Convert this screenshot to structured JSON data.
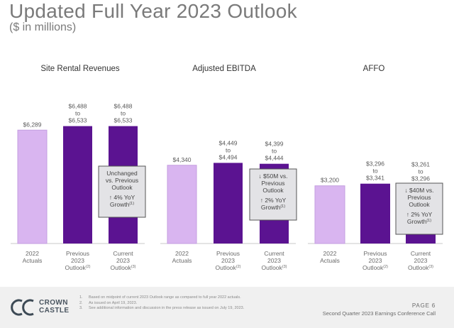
{
  "header": {
    "title": "Updated Full Year 2023 Outlook",
    "subtitle": "($ in millions)"
  },
  "colors": {
    "actual": "#d9b5f0",
    "outlook": "#5b1391",
    "callout_bg": "#e3e3e6",
    "callout_border": "#555555",
    "axis": "#c8c8c8"
  },
  "chart_data": [
    {
      "type": "bar",
      "title": "Site Rental Revenues",
      "categories": [
        "2022 Actuals",
        "Previous 2023 Outlook",
        "Current 2023 Outlook"
      ],
      "category_lines": [
        [
          "2022",
          "Actuals"
        ],
        [
          "Previous",
          "2023",
          "Outlook",
          "(2)"
        ],
        [
          "Current",
          "2023",
          "Outlook",
          "(3)"
        ]
      ],
      "values": [
        6289,
        6510.5,
        6510.5
      ],
      "data_labels": [
        [
          "$6,289"
        ],
        [
          "$6,488",
          "to",
          "$6,533"
        ],
        [
          "$6,488",
          "to",
          "$6,533"
        ]
      ],
      "callout": [
        "Unchanged",
        "vs. Previous",
        "Outlook",
        "",
        "↑ 4% YoY",
        "Growth",
        "(1)"
      ]
    },
    {
      "type": "bar",
      "title": "Adjusted EBITDA",
      "categories": [
        "2022 Actuals",
        "Previous 2023 Outlook",
        "Current 2023 Outlook"
      ],
      "category_lines": [
        [
          "2022",
          "Actuals"
        ],
        [
          "Previous",
          "2023",
          "Outlook",
          "(2)"
        ],
        [
          "Current",
          "2023",
          "Outlook",
          "(3)"
        ]
      ],
      "values": [
        4340,
        4471.5,
        4421.5
      ],
      "data_labels": [
        [
          "$4,340"
        ],
        [
          "$4,449",
          "to",
          "$4,494"
        ],
        [
          "$4,399",
          "to",
          "$4,444"
        ]
      ],
      "callout": [
        "↓ $50M vs.",
        "Previous",
        "Outlook",
        "",
        "↑ 2% YoY",
        "Growth",
        "(1)"
      ]
    },
    {
      "type": "bar",
      "title": "AFFO",
      "categories": [
        "2022 Actuals",
        "Previous 2023 Outlook",
        "Current 2023 Outlook"
      ],
      "category_lines": [
        [
          "2022",
          "Actuals"
        ],
        [
          "Previous",
          "2023",
          "Outlook",
          "(2)"
        ],
        [
          "Current",
          "2023",
          "Outlook",
          "(3)"
        ]
      ],
      "values": [
        3200,
        3318.5,
        3278.5
      ],
      "data_labels": [
        [
          "$3,200"
        ],
        [
          "$3,296",
          "to",
          "$3,341"
        ],
        [
          "$3,261",
          "to",
          "$3,296"
        ]
      ],
      "callout": [
        "↓ $40M vs.",
        "Previous",
        "Outlook",
        "",
        "↑ 2% YoY",
        "Growth",
        "(1)"
      ]
    }
  ],
  "footer": {
    "brand_line1": "CROWN",
    "brand_line2": "CASTLE",
    "notes": [
      {
        "num": "1.",
        "text": "Based on midpoint of current 2023 Outlook range as compared to full year 2022 actuals."
      },
      {
        "num": "2.",
        "text": "As issued on April 19, 2023."
      },
      {
        "num": "3.",
        "text": "See additional information and discussion in the press release as issued on July 19, 2023."
      }
    ],
    "page_label": "PAGE  6",
    "call_label": "Second Quarter 2023 Earnings Conference Call"
  }
}
